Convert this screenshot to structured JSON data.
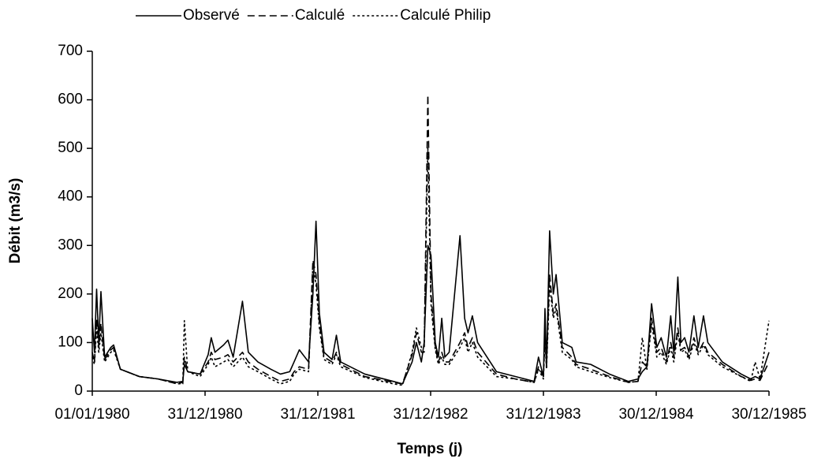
{
  "chart_data": {
    "type": "line",
    "xlabel": "Temps (j)",
    "ylabel": "Débit (m3/s)",
    "x": [
      "01/01/1980",
      "08/01/1980",
      "15/01/1980",
      "22/01/1980",
      "29/01/1980",
      "10/02/1980",
      "01/03/1980",
      "10/03/1980",
      "01/04/1980",
      "01/06/1980",
      "01/08/1980",
      "01/10/1980",
      "20/10/1980",
      "25/10/1980",
      "05/11/1980",
      "15/12/1980",
      "10/01/1981",
      "20/01/1981",
      "01/02/1981",
      "01/03/1981",
      "15/03/1981",
      "01/04/1981",
      "01/05/1981",
      "20/05/1981",
      "20/06/1981",
      "01/08/1981",
      "01/09/1981",
      "01/10/1981",
      "15/10/1981",
      "01/11/1981",
      "01/12/1981",
      "15/12/1981",
      "25/12/1981",
      "05/01/1982",
      "20/01/1982",
      "15/02/1982",
      "01/03/1982",
      "15/03/1982",
      "01/06/1982",
      "01/09/1982",
      "01/10/1982",
      "01/11/1982",
      "15/11/1982",
      "01/12/1982",
      "10/12/1982",
      "22/12/1982",
      "01/01/1983",
      "15/01/1983",
      "25/01/1983",
      "05/02/1983",
      "15/02/1983",
      "01/03/1983",
      "05/04/1983",
      "20/04/1983",
      "01/05/1983",
      "15/05/1983",
      "01/06/1983",
      "01/08/1983",
      "01/10/1983",
      "01/12/1983",
      "15/12/1983",
      "31/12/1983",
      "05/01/1984",
      "10/01/1984",
      "20/01/1984",
      "01/02/1984",
      "10/02/1984",
      "01/03/1984",
      "01/04/1984",
      "15/04/1984",
      "01/06/1984",
      "01/08/1984",
      "01/10/1984",
      "01/11/1984",
      "15/11/1984",
      "30/11/1984",
      "15/12/1984",
      "01/01/1985",
      "15/01/1985",
      "01/02/1985",
      "15/02/1985",
      "25/02/1985",
      "10/03/1985",
      "20/03/1985",
      "01/04/1985",
      "15/04/1985",
      "01/05/1985",
      "15/05/1985",
      "01/06/1985",
      "15/06/1985",
      "01/08/1985",
      "01/10/1985",
      "01/11/1985",
      "15/11/1985",
      "01/12/1985",
      "30/12/1985"
    ],
    "series": [
      {
        "name": "Observé",
        "color": "#000000",
        "dash": "solid",
        "values": [
          150,
          80,
          210,
          100,
          205,
          70,
          90,
          95,
          45,
          30,
          25,
          18,
          20,
          55,
          40,
          35,
          75,
          110,
          80,
          95,
          105,
          70,
          185,
          80,
          60,
          45,
          35,
          40,
          60,
          85,
          60,
          200,
          350,
          160,
          80,
          65,
          115,
          60,
          35,
          20,
          15,
          60,
          100,
          60,
          100,
          300,
          280,
          100,
          70,
          150,
          70,
          80,
          320,
          150,
          120,
          155,
          100,
          40,
          30,
          20,
          70,
          30,
          170,
          50,
          330,
          200,
          240,
          100,
          90,
          60,
          55,
          35,
          20,
          25,
          40,
          50,
          180,
          90,
          110,
          70,
          155,
          80,
          235,
          100,
          110,
          80,
          155,
          90,
          155,
          100,
          60,
          35,
          25,
          30,
          25,
          80
        ]
      },
      {
        "name": "Calculé",
        "color": "#000000",
        "dash": "dashed",
        "values": [
          80,
          60,
          150,
          90,
          140,
          65,
          85,
          90,
          45,
          30,
          25,
          15,
          18,
          70,
          40,
          35,
          60,
          80,
          65,
          70,
          75,
          60,
          80,
          60,
          45,
          30,
          20,
          25,
          40,
          50,
          45,
          270,
          240,
          140,
          70,
          60,
          80,
          55,
          30,
          18,
          15,
          75,
          120,
          80,
          80,
          610,
          200,
          90,
          60,
          80,
          60,
          60,
          100,
          120,
          90,
          110,
          80,
          35,
          25,
          18,
          50,
          30,
          120,
          50,
          240,
          160,
          180,
          90,
          70,
          55,
          45,
          30,
          18,
          20,
          60,
          50,
          150,
          80,
          90,
          60,
          100,
          70,
          130,
          85,
          90,
          70,
          110,
          80,
          100,
          80,
          55,
          30,
          22,
          25,
          22,
          60
        ]
      },
      {
        "name": "Calculé Philip",
        "color": "#000000",
        "dash": "dotted",
        "values": [
          70,
          55,
          130,
          80,
          120,
          60,
          80,
          85,
          45,
          30,
          25,
          15,
          15,
          145,
          40,
          30,
          55,
          70,
          50,
          60,
          65,
          50,
          70,
          50,
          40,
          25,
          15,
          20,
          35,
          45,
          40,
          260,
          220,
          130,
          65,
          55,
          75,
          50,
          28,
          15,
          12,
          80,
          130,
          90,
          90,
          500,
          180,
          85,
          55,
          70,
          55,
          55,
          90,
          110,
          80,
          100,
          70,
          30,
          25,
          18,
          45,
          25,
          110,
          45,
          220,
          150,
          170,
          80,
          65,
          50,
          40,
          28,
          18,
          20,
          110,
          45,
          140,
          70,
          80,
          55,
          90,
          60,
          120,
          80,
          85,
          65,
          100,
          75,
          95,
          75,
          50,
          30,
          20,
          60,
          25,
          145
        ]
      }
    ],
    "xlim": [
      "01/01/1980",
      "30/12/1985"
    ],
    "xticks": [
      "01/01/1980",
      "31/12/1980",
      "31/12/1981",
      "31/12/1982",
      "31/12/1983",
      "30/12/1984",
      "30/12/1985"
    ],
    "ylim": [
      0,
      700
    ],
    "yticks": [
      0,
      100,
      200,
      300,
      400,
      500,
      600,
      700
    ],
    "grid": false,
    "legend": "top"
  }
}
